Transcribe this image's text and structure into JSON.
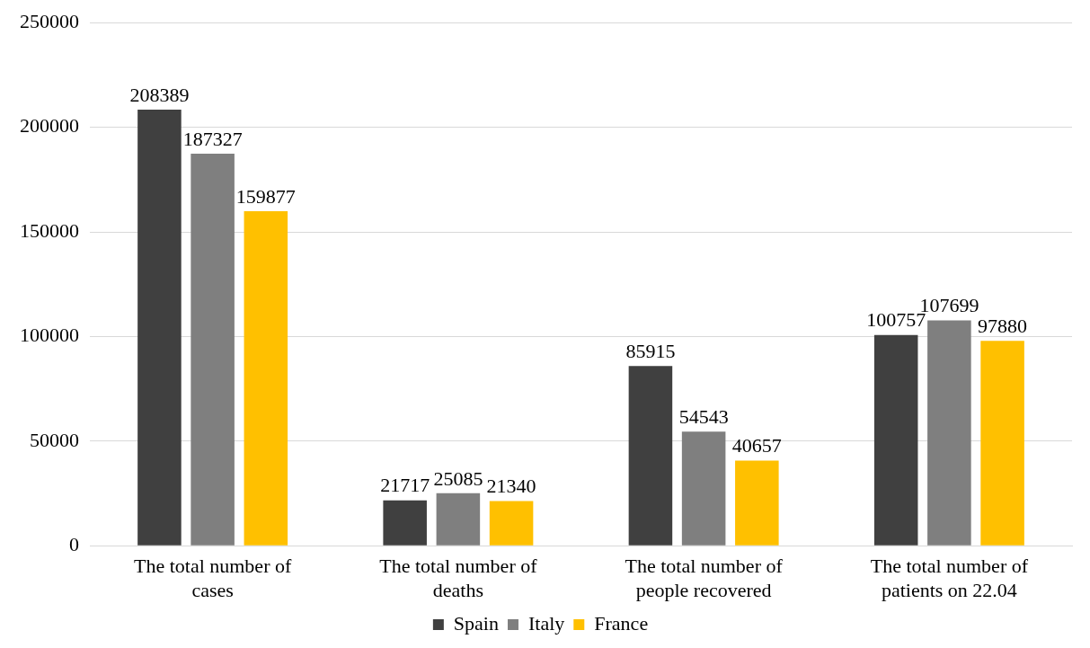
{
  "chart_data": {
    "type": "bar",
    "categories": [
      "The total number of cases",
      "The total number of deaths",
      "The total number of people recovered",
      "The total number of patients on 22.04"
    ],
    "series": [
      {
        "name": "Spain",
        "color": "#404040",
        "values": [
          208389,
          21717,
          85915,
          100757
        ]
      },
      {
        "name": "Italy",
        "color": "#7f7f7f",
        "values": [
          187327,
          25085,
          54543,
          107699
        ]
      },
      {
        "name": "France",
        "color": "#ffc000",
        "values": [
          159877,
          21340,
          40657,
          97880
        ]
      }
    ],
    "ylim": [
      0,
      250000
    ],
    "yticks": [
      0,
      50000,
      100000,
      150000,
      200000,
      250000
    ],
    "grid": "y",
    "legend": "bottom",
    "data_labels": true
  }
}
